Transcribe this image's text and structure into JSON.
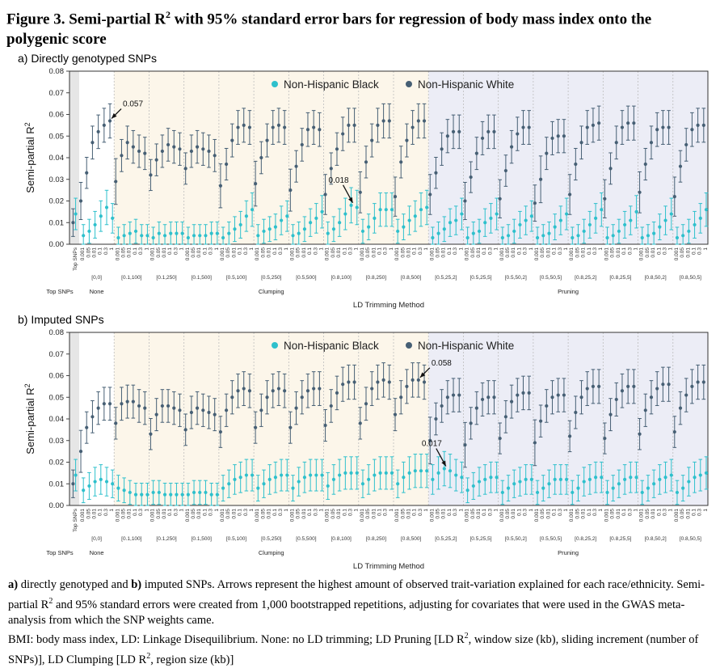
{
  "figure": {
    "title_main": "Figure 3. Semi-partial R",
    "title_sup": "2",
    "title_rest": " with 95% standard error bars for regression of body mass index onto the polygenic score"
  },
  "caption": {
    "p1_a": "a)",
    "p1_b": " directly genotyped and ",
    "p1_c": "b)",
    "p1_d": " imputed SNPs. Arrows represent the highest amount of observed trait-variation explained for each race/ethnicity. Semi-partial R",
    "p1_sup": "2",
    "p1_e": " and 95% standard errors were created from 1,000 bootstrapped repetitions, adjusting for covariates that were used in the GWAS meta-analysis from which the SNP weights came.",
    "p2_a": "BMI: body mass index, LD: Linkage Disequilibrium. None: no LD trimming; LD Pruning [LD R",
    "p2_sup1": "2",
    "p2_b": ", window size (kb), sliding increment (number of SNPs)], LD Clumping [LD R",
    "p2_sup2": "2",
    "p2_c": ", region size (kb)]"
  },
  "colors": {
    "black_series": "#2ec0cc",
    "white_series": "#465f74",
    "clumping_band": "#fcf6ea",
    "pruning_band": "#ecedf6",
    "top_band": "#e6e6e6"
  },
  "chart_data": [
    {
      "type": "scatter",
      "panel_label": "a) Directly genotyped SNPs",
      "ylabel": "Semi-partial R",
      "ylabel_sup": "2",
      "xlabel": "LD Trimming Method",
      "ylim": [
        0,
        0.08
      ],
      "yticks": [
        "0.00",
        "0.01",
        "0.02",
        "0.03",
        "0.04",
        "0.05",
        "0.06",
        "0.07",
        "0.08"
      ],
      "legend": [
        "Non-Hispanic Black",
        "Non-Hispanic White"
      ],
      "legend_position": "top-center",
      "pvalue_labels": [
        "0.001",
        "0.05",
        "0.01",
        "0.1",
        "0.3",
        "1"
      ],
      "top_snps_label": "Top SNPs",
      "groups": [
        "[0,0]",
        "[0.1,100]",
        "[0.1,250]",
        "[0.1,500]",
        "[0.5,100]",
        "[0.5,250]",
        "[0.5,500]",
        "[0.8,100]",
        "[0.8,250]",
        "[0.8,500]",
        "[0.5,25,2]",
        "[0.5,25,5]",
        "[0.5,50,2]",
        "[0.5,50,5]",
        "[0.8,25,2]",
        "[0.8,25,5]",
        "[0.8,50,2]",
        "[0.8,50,5]"
      ],
      "group_category_labels": [
        "Top SNPs",
        "None",
        "Clumping",
        "Pruning"
      ],
      "series": [
        {
          "name": "Non-Hispanic White",
          "top_snps": 0.01,
          "values": [
            [
              0.02,
              0.033,
              0.047,
              0.052,
              0.055,
              0.057
            ],
            [
              0.029,
              0.041,
              0.047,
              0.045,
              0.043,
              0.042
            ],
            [
              0.032,
              0.039,
              0.043,
              0.046,
              0.045,
              0.044
            ],
            [
              0.035,
              0.043,
              0.045,
              0.044,
              0.043,
              0.041
            ],
            [
              0.027,
              0.037,
              0.048,
              0.054,
              0.055,
              0.054
            ],
            [
              0.028,
              0.04,
              0.048,
              0.054,
              0.055,
              0.054
            ],
            [
              0.025,
              0.036,
              0.046,
              0.053,
              0.054,
              0.053
            ],
            [
              0.023,
              0.035,
              0.044,
              0.051,
              0.055,
              0.055
            ],
            [
              0.024,
              0.038,
              0.048,
              0.055,
              0.057,
              0.057
            ],
            [
              0.022,
              0.038,
              0.048,
              0.054,
              0.057,
              0.057
            ],
            [
              0.023,
              0.033,
              0.044,
              0.05,
              0.052,
              0.052
            ],
            [
              0.02,
              0.031,
              0.042,
              0.049,
              0.052,
              0.052
            ],
            [
              0.021,
              0.034,
              0.045,
              0.051,
              0.054,
              0.054
            ],
            [
              0.019,
              0.03,
              0.042,
              0.049,
              0.05,
              0.05
            ],
            [
              0.023,
              0.037,
              0.047,
              0.054,
              0.055,
              0.056
            ],
            [
              0.021,
              0.035,
              0.047,
              0.054,
              0.056,
              0.056
            ],
            [
              0.024,
              0.037,
              0.047,
              0.053,
              0.054,
              0.054
            ],
            [
              0.022,
              0.036,
              0.046,
              0.053,
              0.055,
              0.055
            ]
          ]
        },
        {
          "name": "Non-Hispanic Black",
          "top_snps": 0.014,
          "values": [
            [
              0.004,
              0.006,
              0.009,
              0.013,
              0.017,
              0.012
            ],
            [
              0.003,
              0.004,
              0.005,
              0.006,
              0.004,
              0.004
            ],
            [
              0.003,
              0.005,
              0.004,
              0.005,
              0.005,
              0.005
            ],
            [
              0.003,
              0.004,
              0.004,
              0.004,
              0.005,
              0.005
            ],
            [
              0.003,
              0.005,
              0.007,
              0.009,
              0.013,
              0.016
            ],
            [
              0.004,
              0.006,
              0.007,
              0.008,
              0.011,
              0.013
            ],
            [
              0.004,
              0.005,
              0.007,
              0.01,
              0.012,
              0.015
            ],
            [
              0.005,
              0.007,
              0.01,
              0.014,
              0.018,
              0.017
            ],
            [
              0.006,
              0.008,
              0.012,
              0.016,
              0.016,
              0.016
            ],
            [
              0.006,
              0.008,
              0.011,
              0.013,
              0.016,
              0.017
            ],
            [
              0.003,
              0.005,
              0.007,
              0.01,
              0.011,
              0.014
            ],
            [
              0.003,
              0.005,
              0.006,
              0.01,
              0.012,
              0.014
            ],
            [
              0.003,
              0.004,
              0.006,
              0.009,
              0.011,
              0.013
            ],
            [
              0.003,
              0.004,
              0.005,
              0.008,
              0.011,
              0.014
            ],
            [
              0.003,
              0.004,
              0.006,
              0.009,
              0.012,
              0.016
            ],
            [
              0.003,
              0.004,
              0.006,
              0.009,
              0.011,
              0.015
            ],
            [
              0.003,
              0.004,
              0.005,
              0.008,
              0.011,
              0.014
            ],
            [
              0.003,
              0.004,
              0.006,
              0.009,
              0.012,
              0.016
            ]
          ]
        }
      ],
      "annotations": [
        {
          "text": "0.057",
          "series": "Non-Hispanic White",
          "group": 0,
          "index": 5
        },
        {
          "text": "0.018",
          "series": "Non-Hispanic Black",
          "group": 7,
          "index": 4
        }
      ]
    },
    {
      "type": "scatter",
      "panel_label": "b) Imputed SNPs",
      "ylabel": "Semi-partial R",
      "ylabel_sup": "2",
      "xlabel": "LD Trimming Method",
      "ylim": [
        0,
        0.08
      ],
      "yticks": [
        "0.00",
        "0.01",
        "0.02",
        "0.03",
        "0.04",
        "0.05",
        "0.06",
        "0.07",
        "0.08"
      ],
      "legend": [
        "Non-Hispanic Black",
        "Non-Hispanic White"
      ],
      "legend_position": "top-center",
      "pvalue_labels": [
        "0.001",
        "0.05",
        "0.01",
        "0.1",
        "0.3",
        "1"
      ],
      "top_snps_label": "Top SNPs",
      "groups": [
        "[0,0]",
        "[0.1,100]",
        "[0.1,250]",
        "[0.1,500]",
        "[0.5,100]",
        "[0.5,250]",
        "[0.5,500]",
        "[0.8,100]",
        "[0.8,250]",
        "[0.8,500]",
        "[0.5,25,2]",
        "[0.5,25,5]",
        "[0.5,50,2]",
        "[0.5,50,5]",
        "[0.8,25,2]",
        "[0.8,25,5]",
        "[0.8,50,2]",
        "[0.8,50,5]"
      ],
      "group_category_labels": [
        "Top SNPs",
        "None",
        "Clumping",
        "Pruning"
      ],
      "series": [
        {
          "name": "Non-Hispanic White",
          "top_snps": 0.01,
          "values": [
            [
              0.025,
              0.036,
              0.041,
              0.045,
              0.047,
              0.047
            ],
            [
              0.038,
              0.047,
              0.048,
              0.048,
              0.046,
              0.045
            ],
            [
              0.033,
              0.042,
              0.046,
              0.046,
              0.045,
              0.044
            ],
            [
              0.035,
              0.043,
              0.045,
              0.044,
              0.043,
              0.042
            ],
            [
              0.034,
              0.044,
              0.05,
              0.053,
              0.054,
              0.053
            ],
            [
              0.036,
              0.044,
              0.05,
              0.053,
              0.054,
              0.053
            ],
            [
              0.036,
              0.045,
              0.05,
              0.053,
              0.054,
              0.054
            ],
            [
              0.037,
              0.046,
              0.052,
              0.056,
              0.057,
              0.057
            ],
            [
              0.038,
              0.047,
              0.054,
              0.057,
              0.058,
              0.057
            ],
            [
              0.042,
              0.05,
              0.055,
              0.058,
              0.058,
              0.057
            ],
            [
              0.03,
              0.04,
              0.046,
              0.05,
              0.051,
              0.051
            ],
            [
              0.028,
              0.038,
              0.045,
              0.049,
              0.05,
              0.05
            ],
            [
              0.031,
              0.041,
              0.048,
              0.051,
              0.052,
              0.052
            ],
            [
              0.029,
              0.039,
              0.046,
              0.05,
              0.051,
              0.051
            ],
            [
              0.032,
              0.043,
              0.05,
              0.054,
              0.055,
              0.055
            ],
            [
              0.031,
              0.042,
              0.049,
              0.053,
              0.055,
              0.055
            ],
            [
              0.033,
              0.044,
              0.05,
              0.054,
              0.056,
              0.056
            ],
            [
              0.034,
              0.045,
              0.051,
              0.055,
              0.057,
              0.057
            ]
          ]
        },
        {
          "name": "Non-Hispanic Black",
          "top_snps": 0.014,
          "values": [
            [
              0.007,
              0.009,
              0.011,
              0.012,
              0.011,
              0.01
            ],
            [
              0.008,
              0.007,
              0.006,
              0.005,
              0.005,
              0.005
            ],
            [
              0.006,
              0.006,
              0.005,
              0.005,
              0.005,
              0.005
            ],
            [
              0.005,
              0.006,
              0.006,
              0.006,
              0.005,
              0.005
            ],
            [
              0.008,
              0.01,
              0.012,
              0.013,
              0.014,
              0.014
            ],
            [
              0.008,
              0.01,
              0.012,
              0.013,
              0.014,
              0.014
            ],
            [
              0.008,
              0.011,
              0.013,
              0.014,
              0.014,
              0.014
            ],
            [
              0.009,
              0.012,
              0.014,
              0.015,
              0.015,
              0.015
            ],
            [
              0.01,
              0.012,
              0.014,
              0.015,
              0.015,
              0.015
            ],
            [
              0.01,
              0.013,
              0.015,
              0.016,
              0.016,
              0.016
            ],
            [
              0.012,
              0.015,
              0.017,
              0.016,
              0.014,
              0.013
            ],
            [
              0.007,
              0.009,
              0.011,
              0.012,
              0.013,
              0.013
            ],
            [
              0.006,
              0.008,
              0.01,
              0.011,
              0.012,
              0.012
            ],
            [
              0.006,
              0.008,
              0.01,
              0.012,
              0.012,
              0.012
            ],
            [
              0.006,
              0.008,
              0.011,
              0.012,
              0.013,
              0.013
            ],
            [
              0.006,
              0.008,
              0.01,
              0.012,
              0.013,
              0.013
            ],
            [
              0.006,
              0.008,
              0.01,
              0.012,
              0.013,
              0.014
            ],
            [
              0.006,
              0.008,
              0.011,
              0.013,
              0.014,
              0.015
            ]
          ]
        }
      ],
      "annotations": [
        {
          "text": "0.058",
          "series": "Non-Hispanic White",
          "group": 9,
          "index": 4
        },
        {
          "text": "0.017",
          "series": "Non-Hispanic Black",
          "group": 10,
          "index": 2
        }
      ]
    }
  ]
}
